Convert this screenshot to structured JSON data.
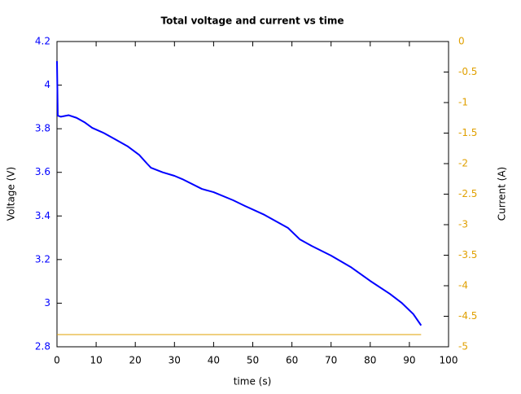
{
  "chart_data": {
    "type": "line",
    "title": "Total voltage and current vs time",
    "xlabel": "time (s)",
    "ylabel": "Voltage (V)",
    "y2label": "Current (A)",
    "xlim": [
      0,
      100
    ],
    "xticks": [
      0,
      10,
      20,
      30,
      40,
      50,
      60,
      70,
      80,
      90,
      100
    ],
    "ylim": [
      2.8,
      4.2
    ],
    "yticks": [
      2.8,
      3,
      3.2,
      3.4,
      3.6,
      3.8,
      4,
      4.2
    ],
    "y2lim": [
      -5,
      0
    ],
    "y2ticks": [
      0,
      -0.5,
      -1,
      -1.5,
      -2,
      -2.5,
      -3,
      -3.5,
      -4,
      -4.5,
      -5
    ],
    "ycolor": "#0000ff",
    "y2color": "#e0a000",
    "series": [
      {
        "color": "#0000ff",
        "x": [
          0,
          0.2,
          1,
          3,
          5,
          7,
          9,
          12,
          15,
          18,
          21,
          23,
          24,
          27,
          30,
          32,
          37,
          40,
          45,
          48,
          53,
          56,
          59,
          62,
          65,
          70,
          75,
          80,
          85,
          88,
          91,
          93
        ],
        "values": [
          4.11,
          3.86,
          3.855,
          3.862,
          3.85,
          3.83,
          3.804,
          3.78,
          3.75,
          3.72,
          3.68,
          3.64,
          3.621,
          3.6,
          3.584,
          3.569,
          3.524,
          3.509,
          3.472,
          3.446,
          3.405,
          3.375,
          3.345,
          3.293,
          3.263,
          3.218,
          3.166,
          3.102,
          3.043,
          3.002,
          2.95,
          2.898
        ]
      },
      {
        "color": "#e0a000",
        "axis": "y2",
        "x": [
          0,
          93
        ],
        "values": [
          -4.8,
          -4.8
        ]
      }
    ]
  }
}
